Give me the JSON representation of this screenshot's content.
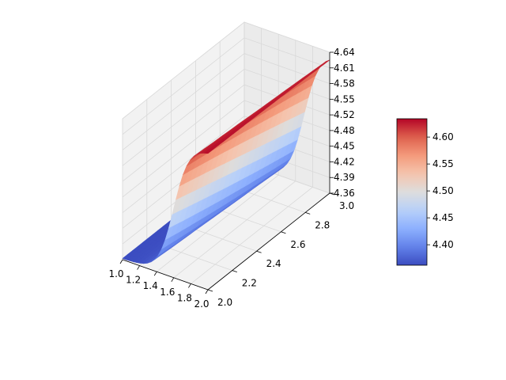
{
  "chart_data": {
    "type": "surface",
    "x_ticks": [
      "1.0",
      "1.2",
      "1.4",
      "1.6",
      "1.8",
      "2.0"
    ],
    "y_ticks": [
      "2.0",
      "2.2",
      "2.4",
      "2.6",
      "2.8",
      "3.0"
    ],
    "z_ticks": [
      "4.36",
      "4.39",
      "4.42",
      "4.45",
      "4.48",
      "4.52",
      "4.55",
      "4.58",
      "4.61",
      "4.64"
    ],
    "colorbar_ticks": [
      "4.40",
      "4.45",
      "4.50",
      "4.55",
      "4.60"
    ],
    "xlim": [
      1.0,
      2.0
    ],
    "ylim": [
      2.0,
      3.0
    ],
    "zlim": [
      4.36,
      4.64
    ],
    "colormap": "coolwarm",
    "colorbar_range": [
      4.362,
      4.634
    ],
    "surface_grid": {
      "x": [
        1.0,
        1.1,
        1.2,
        1.3,
        1.4,
        1.5,
        1.6,
        1.7,
        1.8,
        1.9,
        2.0
      ],
      "y": [
        2.0,
        2.1,
        2.2,
        2.3,
        2.4,
        2.5,
        2.6,
        2.7,
        2.8,
        2.9,
        3.0
      ],
      "z_low": 4.362,
      "z_high": 4.634,
      "transition_x": 1.6,
      "transition_shift_per_y": 0.1,
      "transition_width": 0.09
    },
    "grid": true,
    "colors": {
      "pane": "#f2f2f2",
      "grid": "#d9d9d9",
      "axis": "#000000"
    }
  }
}
